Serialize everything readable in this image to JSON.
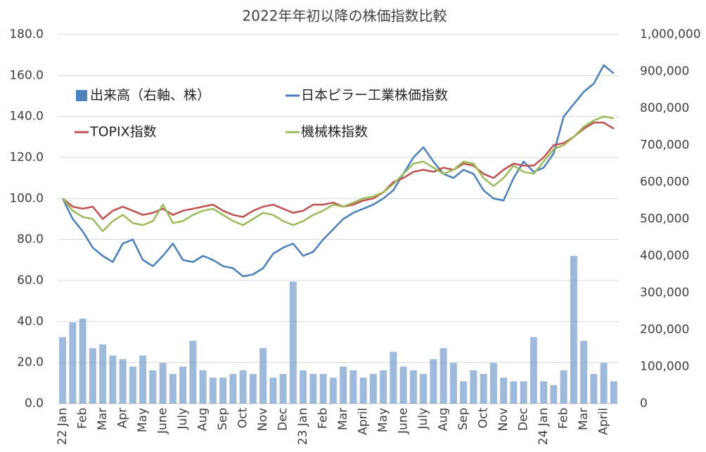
{
  "chart_data": {
    "type": "combo",
    "title": "2022年年初以降の株価指数比較",
    "categories": [
      "22 Jan",
      null,
      "Feb",
      null,
      "Mar",
      null,
      "Apr",
      null,
      "May",
      null,
      "June",
      null,
      "July",
      null,
      "Aug",
      null,
      "Sep",
      null,
      "Oct",
      null,
      "Nov",
      null,
      "Dec",
      null,
      "23 Jan",
      null,
      "Feb",
      null,
      "Mar",
      null,
      "April",
      null,
      "May",
      null,
      "June",
      null,
      "July",
      null,
      "Aug",
      null,
      "Sep",
      null,
      "Oct",
      null,
      "Nov",
      null,
      "Dec",
      null,
      "24 Jan",
      null,
      "Feb",
      null,
      "Mar",
      null,
      "April",
      null
    ],
    "series": [
      {
        "name": "出来高（右軸、株）",
        "type": "bar",
        "axis": "y2",
        "color": "#4f81bd",
        "values": [
          180000,
          220000,
          230000,
          150000,
          160000,
          130000,
          120000,
          100000,
          130000,
          90000,
          110000,
          80000,
          100000,
          170000,
          90000,
          70000,
          70000,
          80000,
          90000,
          80000,
          150000,
          70000,
          80000,
          330000,
          90000,
          80000,
          80000,
          70000,
          100000,
          90000,
          70000,
          80000,
          90000,
          140000,
          100000,
          90000,
          80000,
          120000,
          150000,
          110000,
          60000,
          90000,
          80000,
          110000,
          70000,
          60000,
          60000,
          180000,
          60000,
          50000,
          90000,
          400000,
          170000,
          80000,
          110000,
          60000
        ]
      },
      {
        "name": "日本ピラー工業株価指数",
        "type": "line",
        "color": "#4a7ebb",
        "values": [
          100,
          90,
          84,
          76,
          72,
          69,
          78,
          80,
          70,
          67,
          72,
          78,
          70,
          69,
          72,
          70,
          67,
          66,
          62,
          63,
          66,
          73,
          76,
          78,
          72,
          74,
          80,
          85,
          90,
          93,
          95,
          97,
          100,
          104,
          112,
          120,
          125,
          118,
          112,
          110,
          114,
          112,
          104,
          100,
          99,
          110,
          118,
          113,
          115,
          122,
          140,
          146,
          152,
          156,
          165,
          161
        ]
      },
      {
        "name": "TOPIX指数",
        "type": "line",
        "color": "#c0504d",
        "values": [
          100,
          96,
          95,
          96,
          90,
          94,
          96,
          94,
          92,
          93,
          95,
          92,
          94,
          95,
          96,
          97,
          94,
          92,
          91,
          94,
          96,
          97,
          95,
          93,
          94,
          97,
          97,
          98,
          96,
          97,
          99,
          100,
          103,
          108,
          110,
          113,
          114,
          113,
          115,
          114,
          117,
          116,
          112,
          110,
          114,
          117,
          116,
          116,
          120,
          126,
          127,
          130,
          134,
          137,
          137,
          134
        ]
      },
      {
        "name": "機械株指数",
        "type": "line",
        "color": "#9bbb59",
        "values": [
          100,
          94,
          91,
          90,
          84,
          89,
          92,
          88,
          87,
          89,
          97,
          88,
          89,
          92,
          94,
          95,
          92,
          89,
          87,
          90,
          93,
          92,
          89,
          87,
          89,
          92,
          94,
          97,
          96,
          98,
          100,
          101,
          103,
          107,
          112,
          117,
          118,
          115,
          112,
          114,
          118,
          117,
          110,
          106,
          110,
          116,
          113,
          112,
          118,
          124,
          126,
          130,
          135,
          138,
          140,
          139
        ]
      }
    ],
    "ylim": [
      0,
      180
    ],
    "yticks": [
      {
        "value": 0,
        "label": "0.0"
      },
      {
        "value": 20,
        "label": "20.0"
      },
      {
        "value": 40,
        "label": "40.0"
      },
      {
        "value": 60,
        "label": "60.0"
      },
      {
        "value": 80,
        "label": "80.0"
      },
      {
        "value": 100,
        "label": "100.0"
      },
      {
        "value": 120,
        "label": "120.0"
      },
      {
        "value": 140,
        "label": "140.0"
      },
      {
        "value": 160,
        "label": "160.0"
      },
      {
        "value": 180,
        "label": "180.0"
      }
    ],
    "y2lim": [
      0,
      1000000
    ],
    "y2ticks": [
      0,
      {
        "value": 100000,
        "label": "100,000"
      },
      {
        "value": 200000,
        "label": "200,000"
      },
      {
        "value": 300000,
        "label": "300,000"
      },
      {
        "value": 400000,
        "label": "400,000"
      },
      {
        "value": 500000,
        "label": "500,000"
      },
      {
        "value": 600000,
        "label": "600,000"
      },
      {
        "value": 700000,
        "label": "700,000"
      },
      {
        "value": 800000,
        "label": "800,000"
      },
      {
        "value": 900000,
        "label": "900,000"
      },
      {
        "value": 1000000,
        "label": "1,000,000"
      }
    ],
    "grid": true
  }
}
